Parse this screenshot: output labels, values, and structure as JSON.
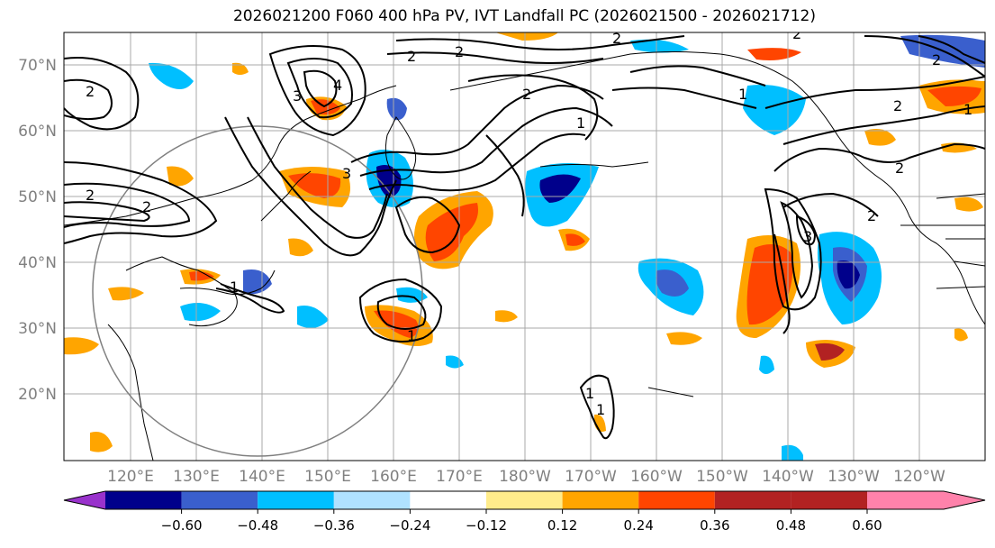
{
  "title": "2026021200 F060 400 hPa PV, IVT Landfall PC (2026021500 - 2026021712)",
  "lat_labels": [
    "70°N",
    "60°N",
    "50°N",
    "40°N",
    "30°N",
    "20°N"
  ],
  "lon_labels": [
    "120°E",
    "130°E",
    "140°E",
    "150°E",
    "160°E",
    "170°E",
    "180°W",
    "170°W",
    "160°W",
    "150°W",
    "140°W",
    "130°W",
    "120°W"
  ],
  "colorbar": {
    "colors": [
      "#9932cc",
      "#00008b",
      "#3a5fcd",
      "#00bfff",
      "#b0e2ff",
      "#ffffff",
      "#ffec8b",
      "#ffa500",
      "#ff4500",
      "#b22222",
      "#ff82ab"
    ],
    "tick_labels": [
      "−0.60",
      "−0.48",
      "−0.36",
      "−0.24",
      "−0.12",
      "0.12",
      "0.24",
      "0.36",
      "0.48",
      "0.60"
    ]
  },
  "contour_labels": [
    "2",
    "2",
    "3",
    "4",
    "2",
    "3",
    "2",
    "2",
    "2",
    "2",
    "1",
    "2",
    "2",
    "1",
    "1",
    "1",
    "2",
    "3",
    "2",
    "2",
    "1",
    "1",
    "1"
  ],
  "palette": {
    "frame": "#000000",
    "grid": "#a9a9a9",
    "circle": "#808080"
  }
}
